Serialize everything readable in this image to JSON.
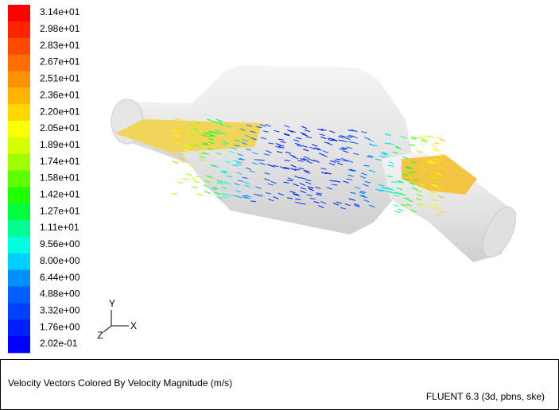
{
  "legend": {
    "labels": [
      "3.14e+01",
      "2.98e+01",
      "2.83e+01",
      "2.67e+01",
      "2.51e+01",
      "2.36e+01",
      "2.20e+01",
      "2.05e+01",
      "1.89e+01",
      "1.74e+01",
      "1.58e+01",
      "1.42e+01",
      "1.27e+01",
      "1.11e+01",
      "9.56e+00",
      "8.00e+00",
      "6.44e+00",
      "4.88e+00",
      "3.32e+00",
      "1.76e+00",
      "2.02e-01"
    ],
    "colors": [
      "#ff0000",
      "#ff2400",
      "#ff4800",
      "#ff6c00",
      "#ff9000",
      "#ffb400",
      "#ffd800",
      "#fcff00",
      "#d8ff00",
      "#a0ff00",
      "#60ff00",
      "#20ff00",
      "#00ff40",
      "#00ff90",
      "#00ffe0",
      "#00d0ff",
      "#0090ff",
      "#0060ff",
      "#0040ff",
      "#0020ff",
      "#0000ff"
    ]
  },
  "axes": {
    "y": "Y",
    "x": "X",
    "z": "Z"
  },
  "caption": "Velocity Vectors Colored By Velocity Magnitude (m/s)",
  "version": "FLUENT 6.3 (3d, pbns, ske)"
}
